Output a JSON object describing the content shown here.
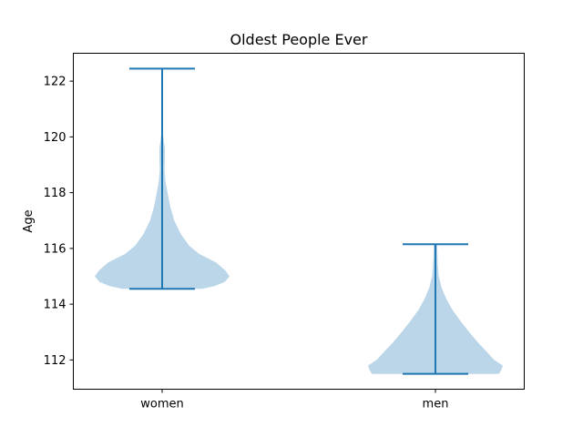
{
  "chart_data": {
    "type": "violin",
    "title": "Oldest People Ever",
    "xlabel": "",
    "ylabel": "Age",
    "ylim": [
      110.95,
      123.0
    ],
    "yticks": [
      112,
      114,
      116,
      118,
      120,
      122
    ],
    "grid": false,
    "legend": null,
    "colors": {
      "body": "#1f77b4",
      "body_alpha": 0.3,
      "lines": "#1f77b4"
    },
    "categories": [
      "women",
      "men"
    ],
    "series": [
      {
        "category": "women",
        "min": 114.55,
        "max": 122.45,
        "density_profile": [
          [
            114.55,
            0.59
          ],
          [
            114.65,
            0.78
          ],
          [
            114.8,
            0.93
          ],
          [
            115.0,
            1.0
          ],
          [
            115.2,
            0.94
          ],
          [
            115.5,
            0.8
          ],
          [
            115.8,
            0.55
          ],
          [
            116.1,
            0.4
          ],
          [
            116.5,
            0.28
          ],
          [
            117.0,
            0.18
          ],
          [
            117.5,
            0.12
          ],
          [
            118.0,
            0.08
          ],
          [
            118.4,
            0.05
          ],
          [
            118.8,
            0.035
          ],
          [
            119.2,
            0.04
          ],
          [
            119.6,
            0.04
          ],
          [
            119.95,
            0.02
          ],
          [
            120.2,
            0.01
          ],
          [
            120.5,
            0.0
          ],
          [
            122.45,
            0.0
          ]
        ]
      },
      {
        "category": "men",
        "min": 111.5,
        "max": 116.15,
        "density_profile": [
          [
            111.5,
            0.94
          ],
          [
            111.65,
            0.98
          ],
          [
            111.8,
            1.0
          ],
          [
            112.0,
            0.87
          ],
          [
            112.3,
            0.76
          ],
          [
            112.6,
            0.64
          ],
          [
            113.0,
            0.5
          ],
          [
            113.4,
            0.37
          ],
          [
            113.8,
            0.25
          ],
          [
            114.2,
            0.16
          ],
          [
            114.6,
            0.09
          ],
          [
            115.0,
            0.05
          ],
          [
            115.4,
            0.035
          ],
          [
            115.8,
            0.03
          ],
          [
            116.15,
            0.025
          ]
        ]
      }
    ]
  }
}
